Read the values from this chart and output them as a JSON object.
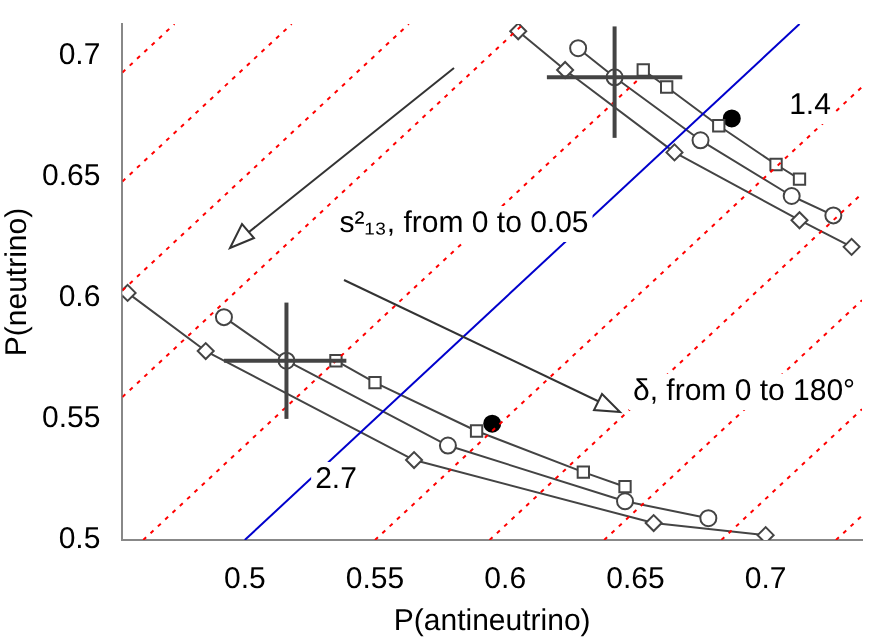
{
  "chart_data": {
    "type": "line",
    "xlabel": "P(antineutrino)",
    "ylabel": "P(neutrino)",
    "xlim": [
      0.453,
      0.737
    ],
    "ylim": [
      0.5,
      0.713
    ],
    "xticks": [
      0.5,
      0.55,
      0.6,
      0.65,
      0.7
    ],
    "yticks": [
      0.5,
      0.55,
      0.6,
      0.65,
      0.7
    ],
    "grid": false,
    "legend": false,
    "series": [
      {
        "type": "line",
        "color": "#0000cc",
        "marker": "none",
        "line_style": "solid",
        "x": [
          0.5,
          0.713
        ],
        "values": [
          0.5,
          0.713
        ]
      },
      {
        "type": "line",
        "color": "#ff0000",
        "marker": "none",
        "line_style": "dotted",
        "x": [
          0.453,
          0.473
        ],
        "values": [
          0.693,
          0.713
        ]
      },
      {
        "type": "line",
        "color": "#ff0000",
        "marker": "none",
        "line_style": "dotted",
        "x": [
          0.453,
          0.518
        ],
        "values": [
          0.648,
          0.713
        ]
      },
      {
        "type": "line",
        "color": "#ff0000",
        "marker": "none",
        "line_style": "dotted",
        "x": [
          0.453,
          0.563
        ],
        "values": [
          0.603,
          0.713
        ]
      },
      {
        "type": "line",
        "color": "#ff0000",
        "marker": "none",
        "line_style": "dotted",
        "x": [
          0.453,
          0.607
        ],
        "values": [
          0.559,
          0.713
        ]
      },
      {
        "type": "line",
        "color": "#ff0000",
        "marker": "none",
        "line_style": "dotted",
        "x": [
          0.461,
          0.652
        ],
        "values": [
          0.5,
          0.691
        ]
      },
      {
        "type": "line",
        "color": "#ff0000",
        "marker": "none",
        "line_style": "dotted",
        "x": [
          0.55,
          0.737
        ],
        "values": [
          0.5,
          0.687
        ]
      },
      {
        "type": "line",
        "color": "#ff0000",
        "marker": "none",
        "line_style": "dotted",
        "x": [
          0.594,
          0.737
        ],
        "values": [
          0.5,
          0.643
        ]
      },
      {
        "type": "line",
        "color": "#ff0000",
        "marker": "none",
        "line_style": "dotted",
        "x": [
          0.638,
          0.737
        ],
        "values": [
          0.5,
          0.599
        ]
      },
      {
        "type": "line",
        "color": "#ff0000",
        "marker": "none",
        "line_style": "dotted",
        "x": [
          0.683,
          0.737
        ],
        "values": [
          0.5,
          0.554
        ]
      },
      {
        "type": "line",
        "color": "#ff0000",
        "marker": "none",
        "line_style": "dotted",
        "x": [
          0.727,
          0.737
        ],
        "values": [
          0.5,
          0.51
        ]
      },
      {
        "type": "line",
        "color": "#444444",
        "marker": "diamond",
        "line_style": "solid",
        "x": [
          0.605,
          0.623,
          0.665,
          0.713,
          0.733
        ],
        "values": [
          0.71,
          0.694,
          0.66,
          0.632,
          0.621
        ]
      },
      {
        "type": "line",
        "color": "#444444",
        "marker": "circle",
        "line_style": "solid",
        "x": [
          0.628,
          0.642,
          0.675,
          0.71,
          0.726
        ],
        "values": [
          0.703,
          0.691,
          0.665,
          0.642,
          0.634
        ],
        "errors": [
          null,
          [
            0.666,
            0.712
          ],
          null,
          null,
          null
        ],
        "xerrors": [
          null,
          [
            0.616,
            0.668
          ],
          null,
          null,
          null
        ]
      },
      {
        "type": "line",
        "color": "#444444",
        "marker": "square",
        "line_style": "solid",
        "x": [
          0.653,
          0.662,
          0.682,
          0.704,
          0.713
        ],
        "values": [
          0.694,
          0.687,
          0.671,
          0.655,
          0.649
        ]
      },
      {
        "type": "line",
        "color": "#444444",
        "marker": "diamond",
        "line_style": "solid",
        "x": [
          0.455,
          0.485,
          0.565,
          0.657,
          0.7
        ],
        "values": [
          0.602,
          0.578,
          0.533,
          0.507,
          0.502
        ]
      },
      {
        "type": "line",
        "color": "#444444",
        "marker": "circle",
        "line_style": "solid",
        "x": [
          0.492,
          0.516,
          0.578,
          0.646,
          0.678
        ],
        "values": [
          0.592,
          0.574,
          0.539,
          0.516,
          0.509
        ],
        "errors": [
          null,
          [
            0.55,
            0.598
          ],
          null,
          null,
          null
        ],
        "xerrors": [
          null,
          [
            0.492,
            0.539
          ],
          null,
          null,
          null
        ]
      },
      {
        "type": "line",
        "color": "#444444",
        "marker": "square",
        "line_style": "solid",
        "x": [
          0.535,
          0.55,
          0.589,
          0.63,
          0.646
        ],
        "values": [
          0.574,
          0.565,
          0.545,
          0.528,
          0.522
        ]
      },
      {
        "type": "scatter",
        "color": "#000000",
        "marker": "circle",
        "x": [
          0.687,
          0.595
        ],
        "values": [
          0.674,
          0.548
        ]
      }
    ],
    "annotations": [
      "1.4",
      "2.7",
      "s²₁₃, from 0 to 0.05",
      "δ, from 0 to 180°"
    ]
  }
}
